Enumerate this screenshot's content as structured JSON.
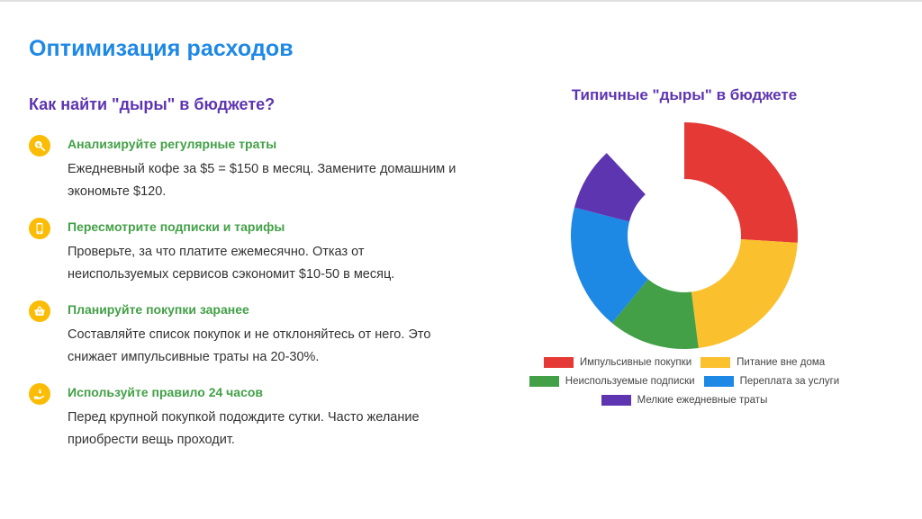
{
  "page": {
    "title": "Оптимизация расходов",
    "subtitle": "Как найти \"дыры\" в бюджете?"
  },
  "tips": [
    {
      "icon": "search-dollar-icon",
      "heading": "Анализируйте регулярные траты",
      "text": "Ежедневный кофе за $5 = $150 в месяц. Замените домашним и экономьте $120."
    },
    {
      "icon": "smartphone-icon",
      "heading": "Пересмотрите подписки и тарифы",
      "text": "Проверьте, за что платите ежемесячно. Отказ от неиспользуемых сервисов сэкономит $10-50 в месяц."
    },
    {
      "icon": "shopping-basket-icon",
      "heading": "Планируйте покупки заранее",
      "text": "Составляйте список покупок и не отклоняйтесь от него. Это снижает импульсивные траты на 20-30%."
    },
    {
      "icon": "hand-dollar-icon",
      "heading": "Используйте правило 24 часов",
      "text": "Перед крупной покупкой подождите сутки. Часто желание приобрести вещь проходит."
    }
  ],
  "colors": {
    "title": "#1e88e5",
    "subtitle": "#5e35b1",
    "tip_heading": "#43a047",
    "icon_bg": "#fbbc05"
  },
  "chart_data": {
    "type": "pie",
    "variant": "doughnut",
    "title": "Типичные \"дыры\" в бюджете",
    "categories": [
      "Импульсивные покупки",
      "Питание вне дома",
      "Неиспользуемые подписки",
      "Переплата за услуги",
      "Мелкие ежедневные траты"
    ],
    "values": [
      26,
      22,
      13,
      18,
      9
    ],
    "colors": [
      "#e53935",
      "#fbc02d",
      "#43a047",
      "#1e88e5",
      "#5e35b1"
    ],
    "unfilled_remainder": 12,
    "total_scale": 100,
    "start_angle_deg": 0,
    "legend_position": "bottom",
    "legend": [
      "Импульсивные покупки",
      "Питание вне дома",
      "Неиспользуемые подписки",
      "Переплата за услуги",
      "Мелкие ежедневные траты"
    ]
  }
}
